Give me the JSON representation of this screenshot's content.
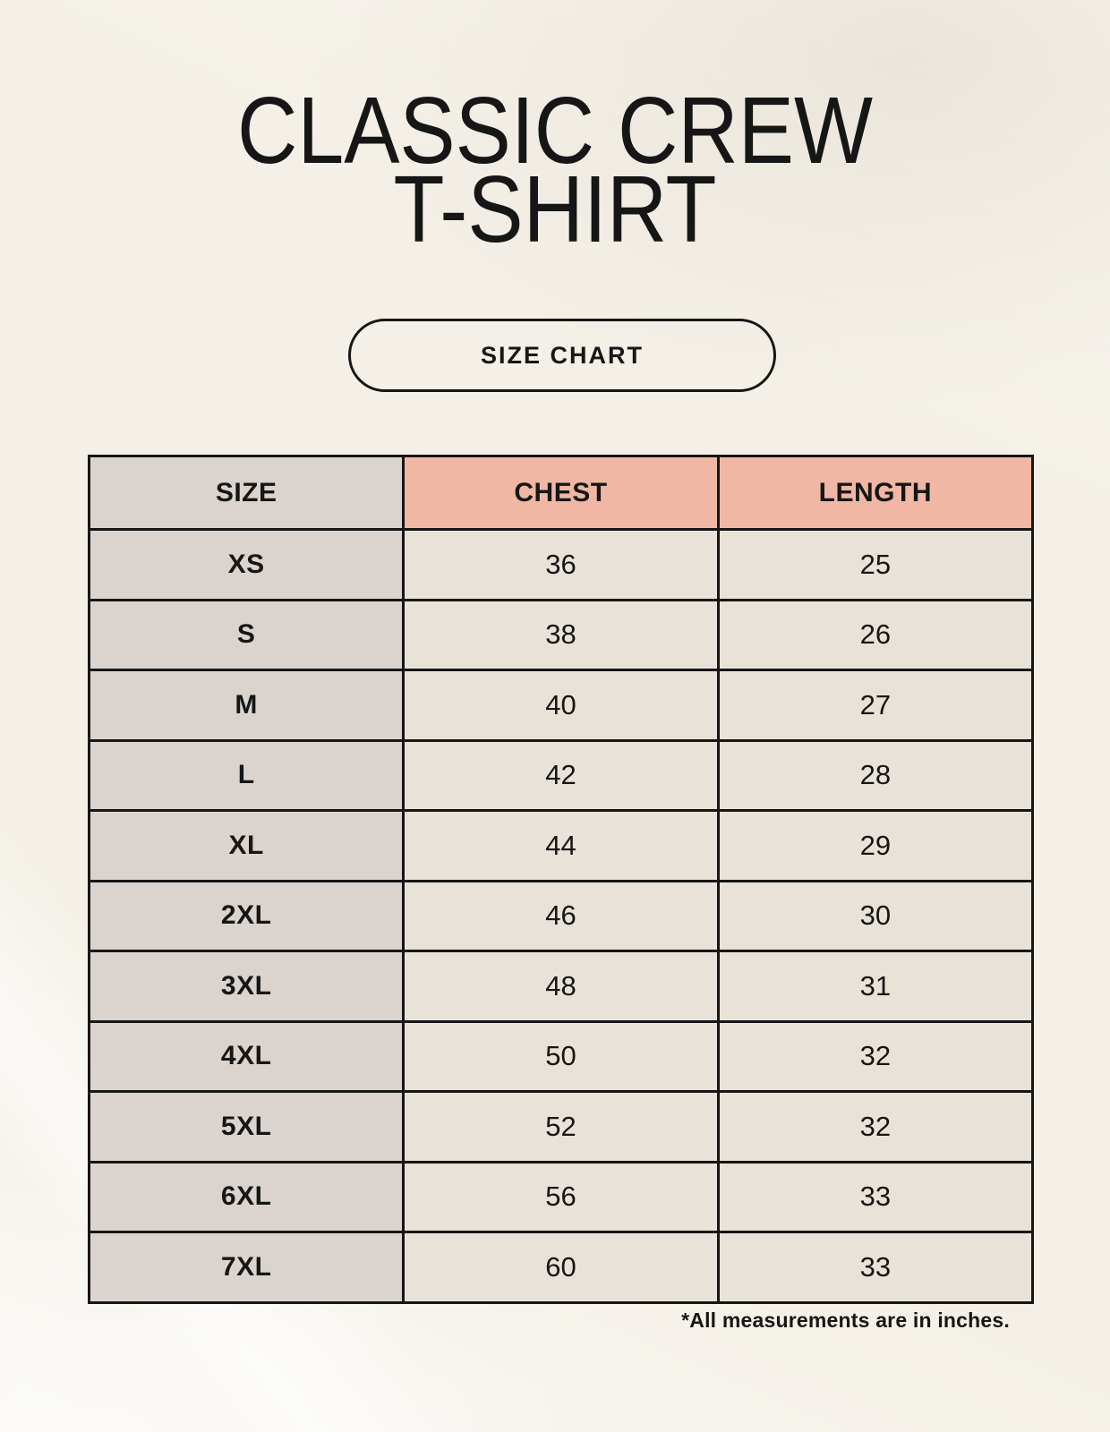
{
  "page": {
    "title_line1": "CLASSIC CREW",
    "title_line2": "T-SHIRT",
    "button_label": "SIZE CHART",
    "footnote": "*All measurements are in inches."
  },
  "colors": {
    "background": "#f4f0e7",
    "header_accent": "#f0b7a4",
    "size_column": "#dbd4ce",
    "data_cell": "#e9e2d8",
    "border": "#161616",
    "text": "#161616"
  },
  "table": {
    "headers": [
      "SIZE",
      "CHEST",
      "LENGTH"
    ],
    "rows": [
      {
        "size": "XS",
        "chest": "36",
        "length": "25"
      },
      {
        "size": "S",
        "chest": "38",
        "length": "26"
      },
      {
        "size": "M",
        "chest": "40",
        "length": "27"
      },
      {
        "size": "L",
        "chest": "42",
        "length": "28"
      },
      {
        "size": "XL",
        "chest": "44",
        "length": "29"
      },
      {
        "size": "2XL",
        "chest": "46",
        "length": "30"
      },
      {
        "size": "3XL",
        "chest": "48",
        "length": "31"
      },
      {
        "size": "4XL",
        "chest": "50",
        "length": "32"
      },
      {
        "size": "5XL",
        "chest": "52",
        "length": "32"
      },
      {
        "size": "6XL",
        "chest": "56",
        "length": "33"
      },
      {
        "size": "7XL",
        "chest": "60",
        "length": "33"
      }
    ]
  }
}
